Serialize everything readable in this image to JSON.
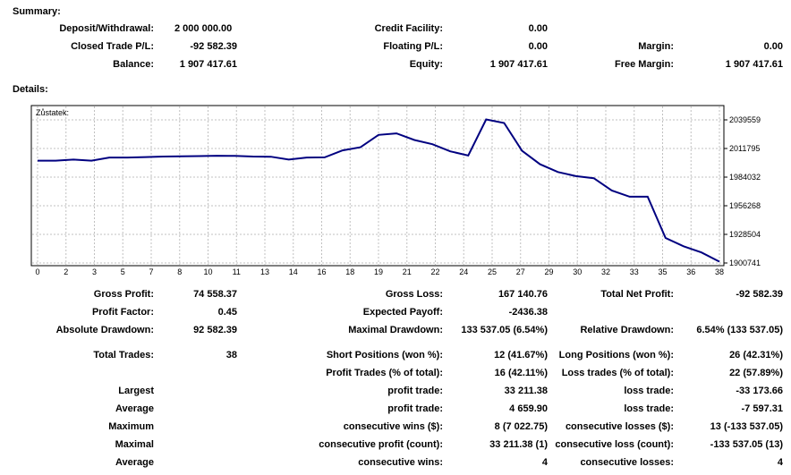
{
  "summary": {
    "heading": "Summary:",
    "deposit_label": "Deposit/Withdrawal:",
    "deposit_value": "2 000 000.00",
    "credit_label": "Credit Facility:",
    "credit_value": "0.00",
    "closed_label": "Closed Trade P/L:",
    "closed_value": "-92 582.39",
    "floating_label": "Floating P/L:",
    "floating_value": "0.00",
    "margin_label": "Margin:",
    "margin_value": "0.00",
    "balance_label": "Balance:",
    "balance_value": "1 907 417.61",
    "equity_label": "Equity:",
    "equity_value": "1 907 417.61",
    "free_margin_label": "Free Margin:",
    "free_margin_value": "1 907 417.61"
  },
  "details": {
    "heading": "Details:",
    "gross_profit_label": "Gross Profit:",
    "gross_profit_value": "74 558.37",
    "gross_loss_label": "Gross Loss:",
    "gross_loss_value": "167 140.76",
    "total_net_label": "Total Net Profit:",
    "total_net_value": "-92 582.39",
    "profit_factor_label": "Profit Factor:",
    "profit_factor_value": "0.45",
    "expected_payoff_label": "Expected Payoff:",
    "expected_payoff_value": "-2436.38",
    "abs_dd_label": "Absolute Drawdown:",
    "abs_dd_value": "92 582.39",
    "max_dd_label": "Maximal Drawdown:",
    "max_dd_value": "133 537.05 (6.54%)",
    "rel_dd_label": "Relative Drawdown:",
    "rel_dd_value": "6.54% (133 537.05)",
    "total_trades_label": "Total Trades:",
    "total_trades_value": "38",
    "short_label": "Short Positions (won %):",
    "short_value": "12 (41.67%)",
    "long_label": "Long Positions (won %):",
    "long_value": "26 (42.31%)",
    "profit_trades_label": "Profit Trades (% of total):",
    "profit_trades_value": "16 (42.11%)",
    "loss_trades_label": "Loss trades (% of total):",
    "loss_trades_value": "22 (57.89%)",
    "largest_label": "Largest",
    "largest_profit_label": "profit trade:",
    "largest_profit_value": "33 211.38",
    "largest_loss_label": "loss trade:",
    "largest_loss_value": "-33 173.66",
    "average_label": "Average",
    "average_profit_label": "profit trade:",
    "average_profit_value": "4 659.90",
    "average_loss_label": "loss trade:",
    "average_loss_value": "-7 597.31",
    "maximum_label": "Maximum",
    "max_cons_wins_label": "consecutive wins ($):",
    "max_cons_wins_value": "8 (7 022.75)",
    "max_cons_losses_label": "consecutive losses ($):",
    "max_cons_losses_value": "13 (-133 537.05)",
    "maximal_label": "Maximal",
    "maximal_profit_label": "consecutive profit (count):",
    "maximal_profit_value": "33 211.38 (1)",
    "maximal_loss_label": "consecutive loss (count):",
    "maximal_loss_value": "-133 537.05 (13)",
    "average2_label": "Average",
    "avg_cons_wins_label": "consecutive wins:",
    "avg_cons_wins_value": "4",
    "avg_cons_losses_label": "consecutive losses:",
    "avg_cons_losses_value": "4"
  },
  "chart_data": {
    "type": "line",
    "series_label": "Zůstatek:",
    "line_color": "#000080",
    "grid": true,
    "x_ticks": [
      "0",
      "2",
      "3",
      "5",
      "7",
      "8",
      "10",
      "11",
      "13",
      "14",
      "16",
      "18",
      "19",
      "21",
      "22",
      "24",
      "25",
      "27",
      "29",
      "30",
      "32",
      "33",
      "35",
      "36",
      "38"
    ],
    "y_ticks": [
      "2039559",
      "2011795",
      "1984032",
      "1956268",
      "1928504",
      "1900741"
    ],
    "y_tick_values": [
      2039559,
      2011795,
      1984032,
      1956268,
      1928504,
      1900741
    ],
    "ylim": [
      1900741,
      2039559
    ],
    "xlim": [
      0,
      38
    ],
    "x": [
      0,
      1,
      2,
      3,
      4,
      5,
      6,
      7,
      8,
      9,
      10,
      11,
      12,
      13,
      14,
      15,
      16,
      17,
      18,
      19,
      20,
      21,
      22,
      23,
      24,
      25,
      26,
      27,
      28,
      29,
      30,
      31,
      32,
      33,
      34,
      35,
      36,
      37,
      38
    ],
    "values": [
      2000000,
      2000000,
      2001000,
      2000000,
      2003000,
      2003000,
      2003500,
      2004000,
      2004200,
      2004400,
      2004800,
      2004600,
      2004000,
      2003800,
      2001000,
      2003000,
      2003200,
      2010000,
      2013000,
      2025000,
      2026500,
      2020000,
      2016000,
      2009000,
      2005000,
      2040000,
      2036500,
      2009500,
      1996500,
      1989000,
      1985000,
      1983000,
      1971000,
      1965000,
      1965000,
      1925000,
      1917000,
      1911000,
      1902000
    ]
  }
}
